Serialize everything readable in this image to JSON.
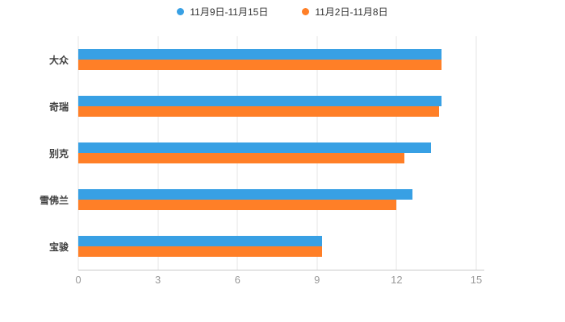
{
  "chart_data": {
    "type": "bar",
    "orientation": "horizontal",
    "title": "",
    "xlabel": "",
    "ylabel": "",
    "categories": [
      "大众",
      "奇瑞",
      "别克",
      "雪佛兰",
      "宝骏"
    ],
    "series": [
      {
        "name": "11月9日-11月15日",
        "color": "#38a0e4",
        "values": [
          13.7,
          13.7,
          13.3,
          12.6,
          9.2
        ]
      },
      {
        "name": "11月2日-11月8日",
        "color": "#ff7f27",
        "values": [
          13.7,
          13.6,
          12.3,
          12.0,
          9.2
        ]
      }
    ],
    "xlim": [
      0,
      15
    ],
    "xticks": [
      0,
      3,
      6,
      9,
      12,
      15
    ],
    "grid": true,
    "legend_position": "top",
    "background": "#ffffff"
  },
  "colors": {
    "gridline": "#e4e4e4",
    "axis_line": "#c9c9c9",
    "tick_label": "#9b9b9b",
    "category_label": "#404040",
    "legend_label": "#333333"
  }
}
